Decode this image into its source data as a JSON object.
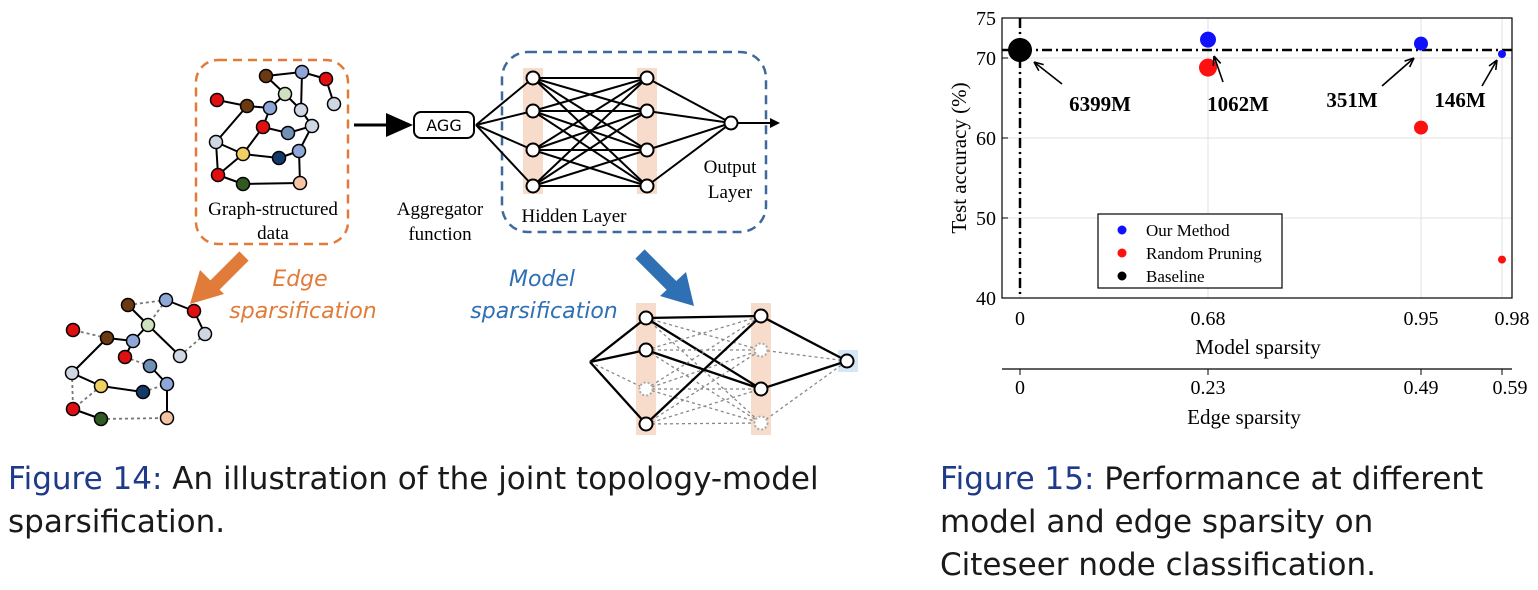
{
  "figure14": {
    "graph_label_line1": "Graph-structured",
    "graph_label_line2": "data",
    "agg_label": "AGG",
    "aggregator_line1": "Aggregator",
    "aggregator_line2": "function",
    "hidden_label": "Hidden Layer",
    "output_line1": "Output",
    "output_line2": "Layer",
    "edge_sparsification_line1": "Edge",
    "edge_sparsification_line2": "sparsification",
    "model_sparsification_line1": "Model",
    "model_sparsification_line2": "sparsification",
    "colors": {
      "orange": "#e07b39",
      "blue": "#2f6fb4",
      "dashed_box_blue": "#3d6a9a",
      "layer_fill": "#f8dccb"
    }
  },
  "caption14": {
    "label": "Figure 14:",
    "text": " An illustration of the joint topology-model sparsification."
  },
  "figure15": {
    "chart_data": {
      "type": "scatter",
      "xlabel": "Model sparsity",
      "x2label": "Edge sparsity",
      "ylabel": "Test accuracy (%)",
      "categories_model_sparsity": [
        "0",
        "0.68",
        "0.95",
        "0.98"
      ],
      "categories_edge_sparsity": [
        "0",
        "0.23",
        "0.49",
        "0.59"
      ],
      "ylim": [
        40,
        75
      ],
      "yticks": [
        40,
        50,
        60,
        70,
        75
      ],
      "baseline_accuracy": 71,
      "legend_position": "bottom-left",
      "series": [
        {
          "name": "Our Method",
          "color": "#1010ff",
          "points": [
            {
              "x": "0.68",
              "y": 72.3
            },
            {
              "x": "0.95",
              "y": 71.8
            },
            {
              "x": "0.98",
              "y": 70.5
            }
          ]
        },
        {
          "name": "Random Pruning",
          "color": "#ff1010",
          "points": [
            {
              "x": "0.68",
              "y": 68.8
            },
            {
              "x": "0.95",
              "y": 61.3
            },
            {
              "x": "0.98",
              "y": 44.8
            }
          ]
        },
        {
          "name": "Baseline",
          "color": "#000000",
          "points": [
            {
              "x": "0",
              "y": 71
            }
          ]
        }
      ],
      "annotations": [
        "6399M",
        "1062M",
        "351M",
        "146M"
      ]
    }
  },
  "caption15": {
    "label": "Figure 15:",
    "text": " Performance at different model and edge sparsity on Citeseer node classification."
  }
}
